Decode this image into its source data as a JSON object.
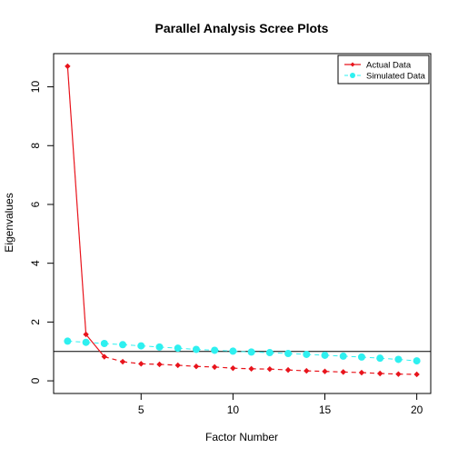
{
  "chart_data": {
    "type": "line",
    "title": "Parallel Analysis Scree Plots",
    "xlabel": "Factor Number",
    "ylabel": "Eigenvalues",
    "xlim": [
      0.24,
      20.76
    ],
    "ylim": [
      -0.43,
      11.13
    ],
    "xticks": [
      5,
      10,
      15,
      20
    ],
    "yticks": [
      0,
      2,
      4,
      6,
      8,
      10
    ],
    "reference_line": 1,
    "grid": false,
    "legend_position": "top-right",
    "x": [
      1,
      2,
      3,
      4,
      5,
      6,
      7,
      8,
      9,
      10,
      11,
      12,
      13,
      14,
      15,
      16,
      17,
      18,
      19,
      20
    ],
    "series": [
      {
        "name": "Actual Data",
        "color": "#e8141c",
        "line_style": "solid-then-dashed",
        "marker": "diamond",
        "values": [
          10.7,
          1.58,
          0.82,
          0.65,
          0.58,
          0.56,
          0.53,
          0.49,
          0.47,
          0.43,
          0.41,
          0.4,
          0.37,
          0.34,
          0.32,
          0.3,
          0.28,
          0.25,
          0.23,
          0.22
        ]
      },
      {
        "name": "Simulated Data",
        "color": "#2ef0f0",
        "line_style": "dashed",
        "marker": "circle",
        "values": [
          1.35,
          1.31,
          1.27,
          1.23,
          1.19,
          1.15,
          1.11,
          1.07,
          1.04,
          1.01,
          0.98,
          0.96,
          0.93,
          0.9,
          0.87,
          0.84,
          0.81,
          0.77,
          0.73,
          0.68
        ]
      }
    ]
  }
}
